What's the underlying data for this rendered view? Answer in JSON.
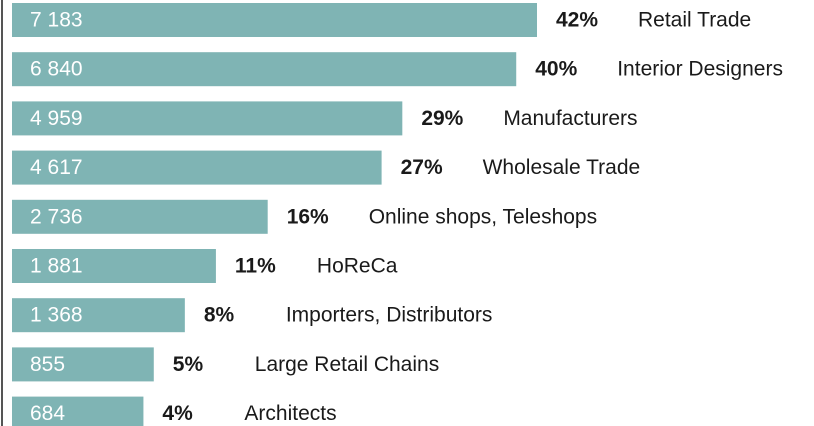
{
  "chart_data": {
    "type": "bar",
    "orientation": "horizontal",
    "color": "#7fb4b4",
    "categories": [
      "Retail Trade",
      "Interior Designers",
      "Manufacturers",
      "Wholesale Trade",
      "Online shops, Teleshops",
      "HoReCa",
      "Importers, Distributors",
      "Large Retail Chains",
      "Architects"
    ],
    "values": [
      7183,
      6840,
      4959,
      4617,
      2736,
      1881,
      1368,
      855,
      684
    ],
    "value_labels": [
      "7 183",
      "6 840",
      "4 959",
      "4 617",
      "2 736",
      "1 881",
      "1 368",
      "855",
      "684"
    ],
    "shares": [
      42,
      40,
      29,
      27,
      16,
      11,
      8,
      5,
      4
    ],
    "share_labels": [
      "42%",
      "40%",
      "29%",
      "27%",
      "16%",
      "11%",
      "8%",
      "5%",
      "4%"
    ]
  }
}
